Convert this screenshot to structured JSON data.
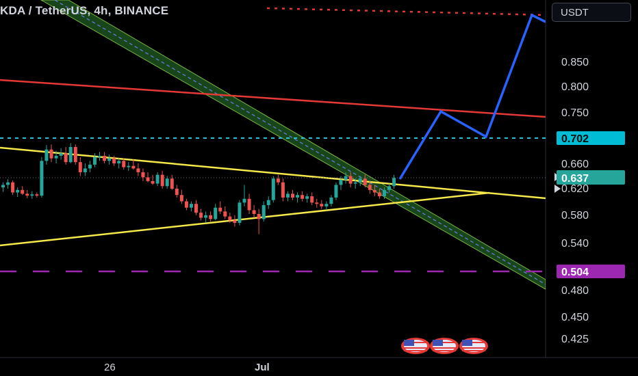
{
  "title": "KDA / TetherUS, 4h, BINANCE",
  "currency_button": "USDT",
  "colors": {
    "background": "#000000",
    "up_candle": "#26a69a",
    "down_candle": "#ef5350",
    "channel_fill": "#2e7d32",
    "channel_border": "#7cb342",
    "channel_mid": "#5b7fd6",
    "triangle": "#f5e84a",
    "red_line": "#e53935",
    "cyan_dotted": "#26c6da",
    "purple_dashed": "#9c27b0",
    "projection": "#2962ff",
    "price_badge": "#26a69a",
    "level_0702_badge": "#00bcd4",
    "level_0504_badge": "#9c27b0"
  },
  "chart_data": {
    "type": "candlestick",
    "symbol": "KDA / TetherUS",
    "interval": "4h",
    "exchange": "BINANCE",
    "y_axis_ticks": [
      "0.850",
      "0.800",
      "0.750",
      "0.660",
      "0.620",
      "0.580",
      "0.540",
      "0.480",
      "0.450",
      "0.425"
    ],
    "x_axis_ticks": [
      "26",
      "Jul"
    ],
    "current_price": "0.637",
    "levels": [
      {
        "value": "0.702",
        "style": "cyan-dotted"
      },
      {
        "value": "0.504",
        "style": "purple-dashed"
      }
    ],
    "candles": [
      [
        0.622,
        0.63,
        0.615,
        0.626
      ],
      [
        0.626,
        0.635,
        0.62,
        0.63
      ],
      [
        0.63,
        0.633,
        0.61,
        0.614
      ],
      [
        0.614,
        0.622,
        0.607,
        0.618
      ],
      [
        0.618,
        0.624,
        0.61,
        0.612
      ],
      [
        0.612,
        0.618,
        0.605,
        0.609
      ],
      [
        0.609,
        0.616,
        0.604,
        0.611
      ],
      [
        0.611,
        0.614,
        0.606,
        0.609
      ],
      [
        0.609,
        0.67,
        0.606,
        0.664
      ],
      [
        0.664,
        0.689,
        0.658,
        0.682
      ],
      [
        0.682,
        0.69,
        0.662,
        0.668
      ],
      [
        0.668,
        0.68,
        0.66,
        0.672
      ],
      [
        0.672,
        0.684,
        0.666,
        0.676
      ],
      [
        0.676,
        0.686,
        0.658,
        0.662
      ],
      [
        0.662,
        0.692,
        0.66,
        0.686
      ],
      [
        0.686,
        0.69,
        0.658,
        0.662
      ],
      [
        0.662,
        0.67,
        0.64,
        0.646
      ],
      [
        0.646,
        0.66,
        0.64,
        0.652
      ],
      [
        0.652,
        0.664,
        0.646,
        0.658
      ],
      [
        0.658,
        0.676,
        0.654,
        0.67
      ],
      [
        0.67,
        0.678,
        0.664,
        0.672
      ],
      [
        0.672,
        0.678,
        0.66,
        0.664
      ],
      [
        0.664,
        0.674,
        0.658,
        0.668
      ],
      [
        0.668,
        0.672,
        0.656,
        0.66
      ],
      [
        0.66,
        0.668,
        0.652,
        0.664
      ],
      [
        0.664,
        0.668,
        0.65,
        0.654
      ],
      [
        0.654,
        0.662,
        0.648,
        0.656
      ],
      [
        0.656,
        0.666,
        0.65,
        0.652
      ],
      [
        0.652,
        0.66,
        0.64,
        0.646
      ],
      [
        0.646,
        0.652,
        0.632,
        0.638
      ],
      [
        0.638,
        0.646,
        0.63,
        0.632
      ],
      [
        0.632,
        0.642,
        0.626,
        0.628
      ],
      [
        0.628,
        0.646,
        0.624,
        0.642
      ],
      [
        0.642,
        0.648,
        0.62,
        0.624
      ],
      [
        0.624,
        0.64,
        0.62,
        0.636
      ],
      [
        0.636,
        0.642,
        0.618,
        0.62
      ],
      [
        0.62,
        0.626,
        0.606,
        0.61
      ],
      [
        0.61,
        0.618,
        0.596,
        0.6
      ],
      [
        0.6,
        0.604,
        0.586,
        0.59
      ],
      [
        0.59,
        0.6,
        0.584,
        0.596
      ],
      [
        0.596,
        0.602,
        0.578,
        0.582
      ],
      [
        0.582,
        0.588,
        0.57,
        0.574
      ],
      [
        0.574,
        0.584,
        0.566,
        0.578
      ],
      [
        0.578,
        0.584,
        0.568,
        0.572
      ],
      [
        0.572,
        0.596,
        0.57,
        0.59
      ],
      [
        0.59,
        0.6,
        0.58,
        0.584
      ],
      [
        0.584,
        0.592,
        0.572,
        0.576
      ],
      [
        0.576,
        0.582,
        0.566,
        0.57
      ],
      [
        0.57,
        0.578,
        0.56,
        0.566
      ],
      [
        0.566,
        0.602,
        0.562,
        0.598
      ],
      [
        0.598,
        0.626,
        0.592,
        0.604
      ],
      [
        0.604,
        0.612,
        0.58,
        0.586
      ],
      [
        0.586,
        0.594,
        0.574,
        0.58
      ],
      [
        0.58,
        0.588,
        0.548,
        0.572
      ],
      [
        0.572,
        0.6,
        0.568,
        0.594
      ],
      [
        0.594,
        0.608,
        0.588,
        0.602
      ],
      [
        0.602,
        0.64,
        0.598,
        0.636
      ],
      [
        0.636,
        0.642,
        0.626,
        0.63
      ],
      [
        0.63,
        0.636,
        0.6,
        0.606
      ],
      [
        0.606,
        0.616,
        0.6,
        0.612
      ],
      [
        0.612,
        0.618,
        0.602,
        0.606
      ],
      [
        0.606,
        0.614,
        0.598,
        0.61
      ],
      [
        0.61,
        0.616,
        0.6,
        0.604
      ],
      [
        0.604,
        0.612,
        0.598,
        0.608
      ],
      [
        0.608,
        0.614,
        0.594,
        0.598
      ],
      [
        0.598,
        0.604,
        0.59,
        0.596
      ],
      [
        0.596,
        0.602,
        0.588,
        0.592
      ],
      [
        0.592,
        0.6,
        0.586,
        0.596
      ],
      [
        0.596,
        0.61,
        0.592,
        0.606
      ],
      [
        0.606,
        0.63,
        0.602,
        0.626
      ],
      [
        0.626,
        0.64,
        0.618,
        0.634
      ],
      [
        0.634,
        0.646,
        0.628,
        0.64
      ],
      [
        0.64,
        0.646,
        0.622,
        0.628
      ],
      [
        0.628,
        0.636,
        0.62,
        0.63
      ],
      [
        0.63,
        0.64,
        0.624,
        0.636
      ],
      [
        0.636,
        0.642,
        0.622,
        0.626
      ],
      [
        0.626,
        0.632,
        0.612,
        0.618
      ],
      [
        0.618,
        0.626,
        0.608,
        0.614
      ],
      [
        0.614,
        0.62,
        0.604,
        0.608
      ],
      [
        0.608,
        0.622,
        0.604,
        0.618
      ],
      [
        0.618,
        0.628,
        0.614,
        0.624
      ],
      [
        0.624,
        0.642,
        0.62,
        0.637
      ]
    ],
    "projection_path": [
      [
        0.637
      ],
      [
        0.75
      ],
      [
        0.703
      ],
      [
        0.9
      ]
    ]
  }
}
